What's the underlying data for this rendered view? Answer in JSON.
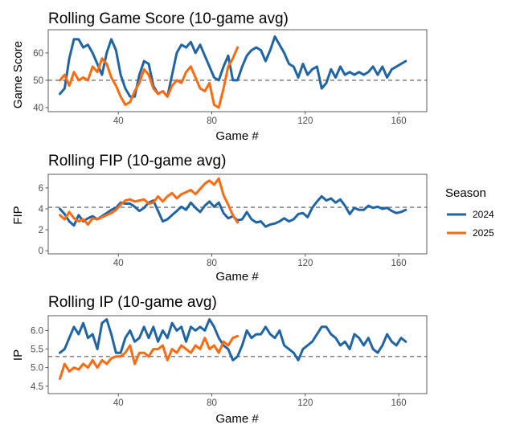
{
  "colors": {
    "season_2024": "#1f65a6",
    "season_2025": "#ff6a10",
    "reference": "#555555"
  },
  "legend": {
    "title": "Season",
    "items": [
      {
        "label": "2024"
      },
      {
        "label": "2025"
      }
    ]
  },
  "chart_data": [
    {
      "type": "line",
      "title": "Rolling Game Score (10-game avg)",
      "xlabel": "Game #",
      "ylabel": "Game Score",
      "xlim": [
        10,
        172
      ],
      "ylim": [
        38.5,
        68.5
      ],
      "xticks": [
        40,
        80,
        120,
        160
      ],
      "yticks": [
        40,
        50,
        60
      ],
      "reference_y": 50,
      "series": [
        {
          "name": "2024",
          "x": [
            15,
            17,
            19,
            21,
            23,
            25,
            27,
            29,
            31,
            33,
            35,
            37,
            39,
            41,
            43,
            45,
            47,
            49,
            51,
            53,
            55,
            57,
            59,
            61,
            63,
            65,
            67,
            69,
            71,
            73,
            75,
            77,
            79,
            81,
            83,
            85,
            87,
            89,
            91,
            93,
            95,
            97,
            99,
            101,
            103,
            105,
            107,
            109,
            111,
            113,
            115,
            117,
            119,
            121,
            123,
            125,
            127,
            129,
            131,
            133,
            135,
            137,
            139,
            141,
            143,
            145,
            147,
            149,
            151,
            153,
            155,
            157,
            159,
            161,
            163
          ],
          "values": [
            45,
            47,
            58,
            65,
            65,
            62,
            63,
            60,
            56,
            52,
            60,
            65,
            61,
            52,
            47,
            44,
            44,
            52,
            57,
            56,
            48,
            45,
            46,
            44,
            52,
            60,
            63,
            62,
            64,
            60,
            63,
            59,
            55,
            51,
            50,
            55,
            59,
            50,
            50,
            55,
            59,
            61,
            62,
            61,
            57,
            61,
            66,
            63,
            60,
            56,
            55,
            51,
            56,
            52,
            54,
            55,
            47,
            49,
            54,
            51,
            55,
            52,
            53,
            52,
            53,
            52,
            53,
            55,
            52,
            55,
            51,
            54,
            55,
            56,
            57
          ]
        },
        {
          "name": "2025",
          "x": [
            15,
            17,
            19,
            21,
            23,
            25,
            27,
            29,
            31,
            33,
            35,
            37,
            39,
            41,
            43,
            45,
            47,
            49,
            51,
            53,
            55,
            57,
            59,
            61,
            63,
            65,
            67,
            69,
            71,
            73,
            75,
            77,
            79,
            81,
            83,
            85,
            87,
            89,
            91
          ],
          "values": [
            50,
            52,
            48,
            53,
            50,
            51,
            50,
            55,
            53,
            58,
            56,
            51,
            48,
            44,
            41,
            42,
            46,
            49,
            54,
            52,
            47,
            45,
            46,
            44,
            48,
            50,
            49,
            53,
            55,
            51,
            47,
            46,
            49,
            41,
            40,
            47,
            55,
            58,
            62
          ]
        }
      ]
    },
    {
      "type": "line",
      "title": "Rolling FIP (10-game avg)",
      "xlabel": "Game #",
      "ylabel": "FIP",
      "xlim": [
        10,
        172
      ],
      "ylim": [
        -0.3,
        7.3
      ],
      "xticks": [
        40,
        80,
        120,
        160
      ],
      "yticks": [
        0,
        2,
        4,
        6
      ],
      "reference_y": 4.15,
      "series": [
        {
          "name": "2024",
          "x": [
            15,
            17,
            19,
            21,
            23,
            25,
            27,
            29,
            31,
            33,
            35,
            37,
            39,
            41,
            43,
            45,
            47,
            49,
            51,
            53,
            55,
            57,
            59,
            61,
            63,
            65,
            67,
            69,
            71,
            73,
            75,
            77,
            79,
            81,
            83,
            85,
            87,
            89,
            91,
            93,
            95,
            97,
            99,
            101,
            103,
            105,
            107,
            109,
            111,
            113,
            115,
            117,
            119,
            121,
            123,
            125,
            127,
            129,
            131,
            133,
            135,
            137,
            139,
            141,
            143,
            145,
            147,
            149,
            151,
            153,
            155,
            157,
            159,
            161,
            163
          ],
          "values": [
            4.0,
            3.5,
            2.8,
            2.4,
            3.4,
            2.8,
            3.1,
            3.3,
            3.0,
            3.3,
            3.6,
            3.9,
            4.1,
            4.6,
            4.5,
            4.5,
            4.2,
            3.8,
            4.1,
            4.6,
            4.8,
            3.8,
            2.8,
            3.0,
            3.4,
            3.8,
            4.2,
            3.9,
            4.6,
            4.1,
            3.7,
            4.3,
            4.7,
            4.2,
            4.6,
            3.6,
            3.1,
            3.3,
            2.9,
            3.0,
            3.7,
            3.0,
            2.7,
            2.8,
            2.3,
            2.5,
            2.6,
            2.8,
            3.1,
            2.8,
            3.0,
            3.5,
            3.6,
            3.2,
            4.1,
            4.7,
            5.2,
            4.8,
            5.0,
            4.6,
            4.9,
            4.3,
            3.5,
            4.1,
            3.9,
            3.9,
            4.3,
            4.1,
            4.2,
            4.0,
            4.1,
            3.8,
            3.6,
            3.7,
            3.9
          ]
        },
        {
          "name": "2025",
          "x": [
            15,
            17,
            19,
            21,
            23,
            25,
            27,
            29,
            31,
            33,
            35,
            37,
            39,
            41,
            43,
            45,
            47,
            49,
            51,
            53,
            55,
            57,
            59,
            61,
            63,
            65,
            67,
            69,
            71,
            73,
            75,
            77,
            79,
            81,
            83,
            85,
            87,
            89,
            91
          ],
          "values": [
            3.4,
            3.0,
            3.7,
            3.1,
            2.8,
            3.0,
            2.5,
            3.1,
            3.0,
            3.2,
            3.4,
            3.6,
            3.9,
            4.4,
            4.8,
            4.9,
            4.7,
            4.8,
            4.9,
            4.5,
            4.6,
            5.2,
            4.7,
            5.2,
            5.5,
            5.0,
            5.4,
            5.6,
            5.8,
            5.4,
            5.9,
            6.4,
            6.7,
            6.3,
            6.9,
            5.3,
            4.4,
            3.4,
            2.7
          ]
        }
      ]
    },
    {
      "type": "line",
      "title": "Rolling IP (10-game avg)",
      "xlabel": "Game #",
      "ylabel": "IP",
      "xlim": [
        10,
        172
      ],
      "ylim": [
        4.3,
        6.4
      ],
      "xticks": [
        40,
        80,
        120,
        160
      ],
      "yticks": [
        4.5,
        5.0,
        5.5,
        6.0
      ],
      "ytick_labels": [
        "4.5",
        "5.0",
        "5.5",
        "6.0"
      ],
      "reference_y": 5.3,
      "series": [
        {
          "name": "2024",
          "x": [
            15,
            17,
            19,
            21,
            23,
            25,
            27,
            29,
            31,
            33,
            35,
            37,
            39,
            41,
            43,
            45,
            47,
            49,
            51,
            53,
            55,
            57,
            59,
            61,
            63,
            65,
            67,
            69,
            71,
            73,
            75,
            77,
            79,
            81,
            83,
            85,
            87,
            89,
            91,
            93,
            95,
            97,
            99,
            101,
            103,
            105,
            107,
            109,
            111,
            113,
            115,
            117,
            119,
            121,
            123,
            125,
            127,
            129,
            131,
            133,
            135,
            137,
            139,
            141,
            143,
            145,
            147,
            149,
            151,
            153,
            155,
            157,
            159,
            161,
            163
          ],
          "values": [
            5.4,
            5.5,
            5.8,
            6.1,
            5.9,
            6.2,
            5.8,
            5.9,
            5.5,
            6.2,
            6.3,
            5.9,
            5.4,
            5.4,
            5.8,
            6.0,
            5.7,
            5.8,
            6.1,
            5.8,
            6.1,
            5.7,
            6.0,
            5.8,
            6.2,
            6.0,
            6.1,
            5.7,
            6.1,
            6.0,
            6.1,
            6.0,
            6.3,
            6.1,
            5.8,
            5.6,
            5.5,
            5.2,
            5.3,
            5.6,
            6.0,
            5.8,
            5.9,
            5.9,
            6.1,
            5.9,
            5.8,
            6.0,
            5.6,
            5.5,
            5.4,
            5.2,
            5.5,
            5.6,
            5.7,
            5.9,
            6.1,
            6.1,
            5.9,
            5.8,
            5.6,
            5.7,
            5.5,
            5.9,
            5.8,
            5.6,
            5.8,
            5.5,
            5.4,
            5.6,
            5.9,
            5.7,
            5.6,
            5.8,
            5.7
          ]
        },
        {
          "name": "2025",
          "x": [
            15,
            17,
            19,
            21,
            23,
            25,
            27,
            29,
            31,
            33,
            35,
            37,
            39,
            41,
            43,
            45,
            47,
            49,
            51,
            53,
            55,
            57,
            59,
            61,
            63,
            65,
            67,
            69,
            71,
            73,
            75,
            77,
            79,
            81,
            83,
            85,
            87,
            89,
            91
          ],
          "values": [
            4.7,
            5.1,
            4.9,
            5.0,
            4.95,
            5.1,
            5.0,
            5.2,
            5.0,
            5.2,
            5.1,
            5.25,
            5.3,
            5.3,
            5.4,
            5.6,
            5.1,
            5.4,
            5.4,
            5.3,
            5.5,
            5.5,
            5.6,
            5.2,
            5.5,
            5.4,
            5.6,
            5.5,
            5.4,
            5.6,
            5.5,
            5.8,
            5.5,
            5.6,
            5.4,
            5.7,
            5.6,
            5.8,
            5.85
          ]
        }
      ]
    }
  ]
}
